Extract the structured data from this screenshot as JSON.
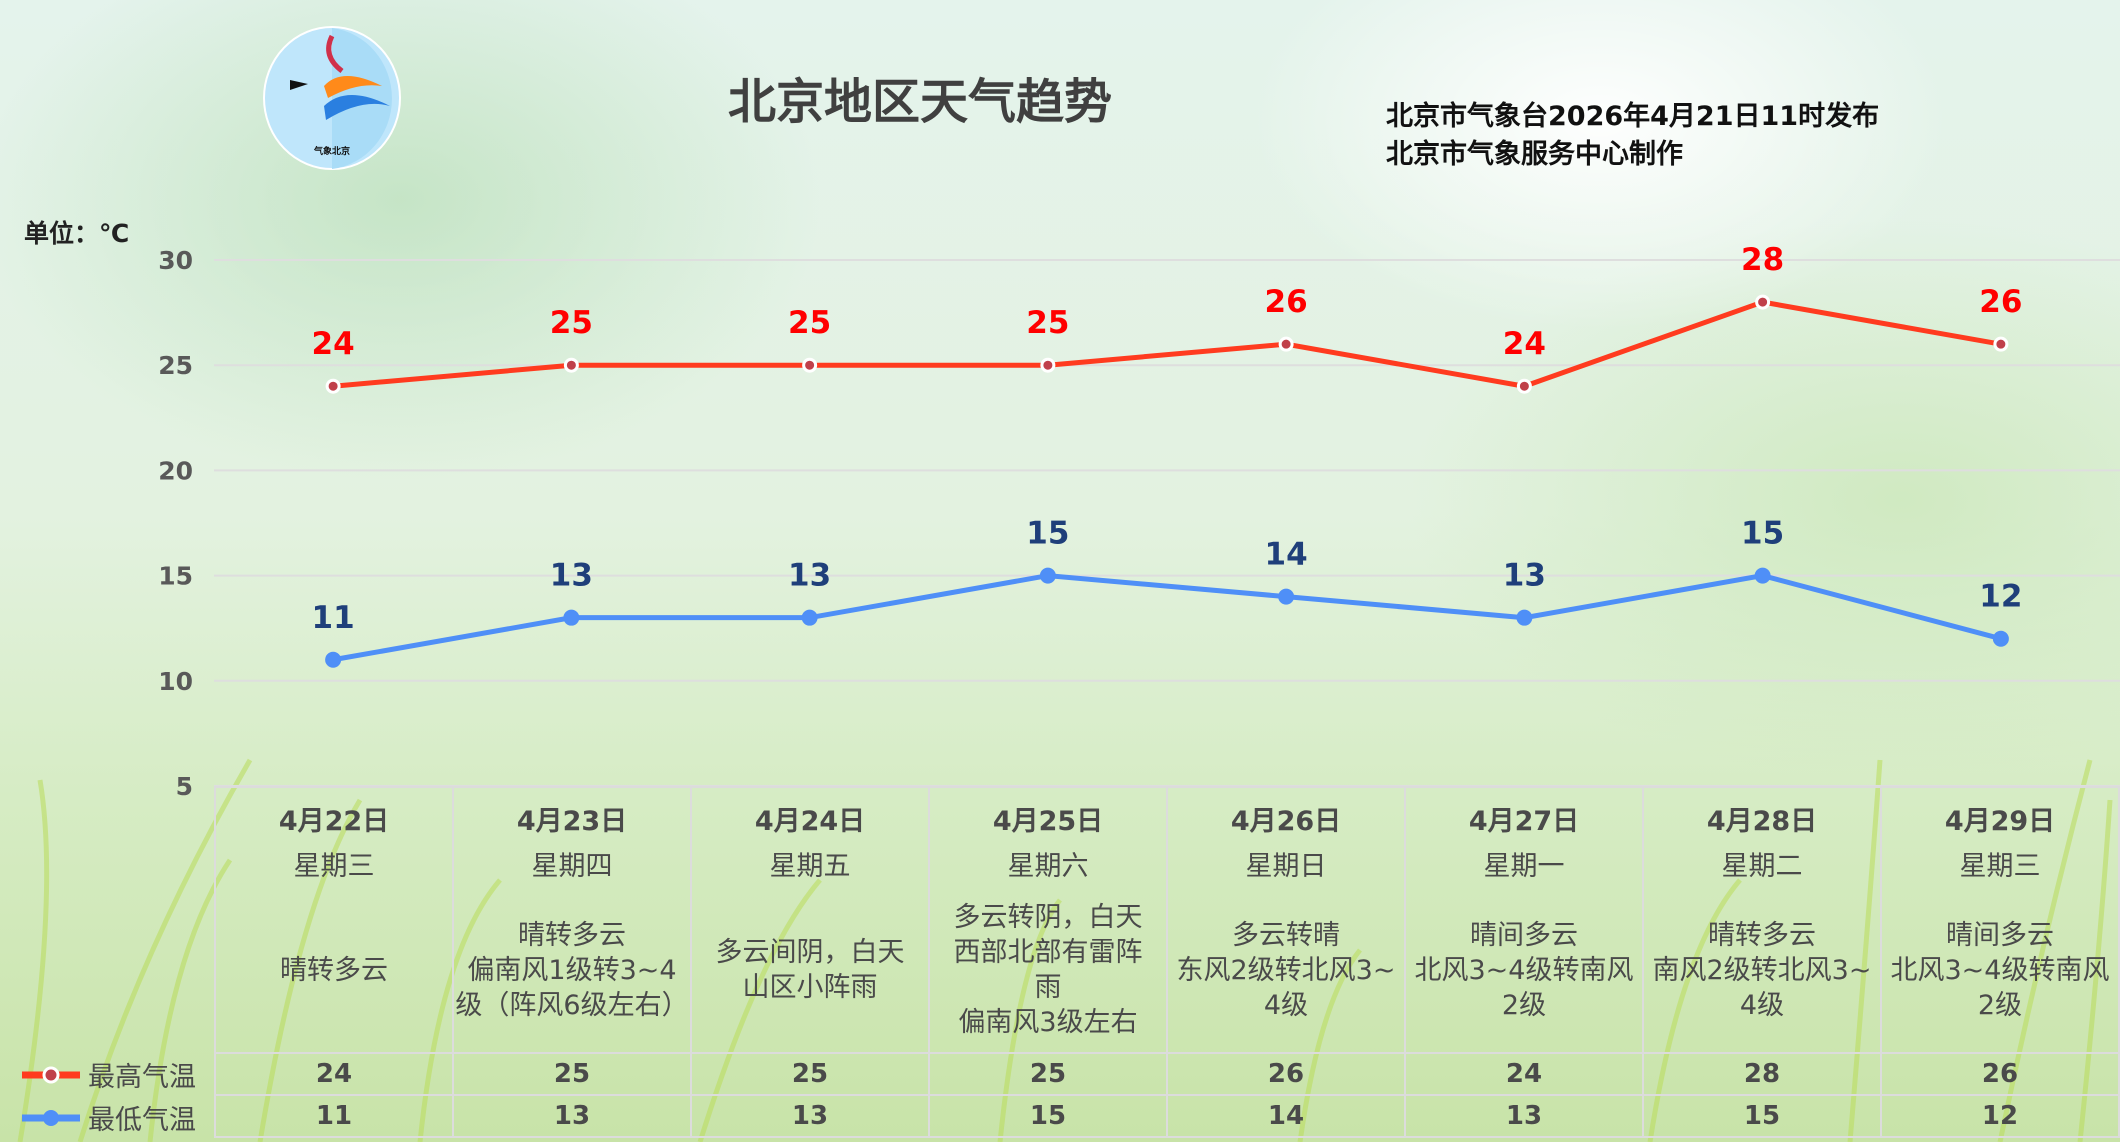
{
  "title": "北京地区天气趋势",
  "issuer_line1": "北京市气象台2026年4月21日11时发布",
  "issuer_line2": "北京市气象服务中心制作",
  "unit_label": "单位：℃",
  "logo": {
    "text": "BEIJING METEOROLOGICAL SERVICE 气象北京"
  },
  "colors": {
    "high": "#ff3b1f",
    "low": "#4f8ff7",
    "high_label": "#ff0000",
    "low_label": "#1f3f7a"
  },
  "legend": {
    "high": "最高气温",
    "low": "最低气温"
  },
  "chart_data": {
    "type": "line",
    "title": "北京地区天气趋势",
    "ylabel": "单位：℃",
    "ylim": [
      5,
      30
    ],
    "yticks": [
      "30",
      "25",
      "20",
      "15",
      "10",
      "5"
    ],
    "grid": true,
    "categories": [
      "4月22日",
      "4月23日",
      "4月24日",
      "4月25日",
      "4月26日",
      "4月27日",
      "4月28日",
      "4月29日"
    ],
    "series": [
      {
        "name": "最高气温",
        "values": [
          24,
          25,
          25,
          25,
          26,
          24,
          28,
          26
        ]
      },
      {
        "name": "最低气温",
        "values": [
          11,
          13,
          13,
          15,
          14,
          13,
          15,
          12
        ]
      }
    ]
  },
  "days": [
    {
      "date": "4月22日",
      "weekday": "星期三",
      "desc": [
        "晴转多云"
      ],
      "high": "24",
      "low": "11"
    },
    {
      "date": "4月23日",
      "weekday": "星期四",
      "desc": [
        "晴转多云",
        "偏南风1级转3~4",
        "级（阵风6级左右）"
      ],
      "high": "25",
      "low": "13"
    },
    {
      "date": "4月24日",
      "weekday": "星期五",
      "desc": [
        "多云间阴，白天",
        "山区小阵雨"
      ],
      "high": "25",
      "low": "13"
    },
    {
      "date": "4月25日",
      "weekday": "星期六",
      "desc": [
        "多云转阴，白天",
        "西部北部有雷阵",
        "雨",
        "偏南风3级左右"
      ],
      "high": "25",
      "low": "15"
    },
    {
      "date": "4月26日",
      "weekday": "星期日",
      "desc": [
        "多云转晴",
        "东风2级转北风3~",
        "4级"
      ],
      "high": "26",
      "low": "14"
    },
    {
      "date": "4月27日",
      "weekday": "星期一",
      "desc": [
        "晴间多云",
        "北风3~4级转南风",
        "2级"
      ],
      "high": "24",
      "low": "13"
    },
    {
      "date": "4月28日",
      "weekday": "星期二",
      "desc": [
        "晴转多云",
        "南风2级转北风3~",
        "4级"
      ],
      "high": "28",
      "low": "15"
    },
    {
      "date": "4月29日",
      "weekday": "星期三",
      "desc": [
        "晴间多云",
        "北风3~4级转南风",
        "2级"
      ],
      "high": "26",
      "low": "12"
    }
  ]
}
